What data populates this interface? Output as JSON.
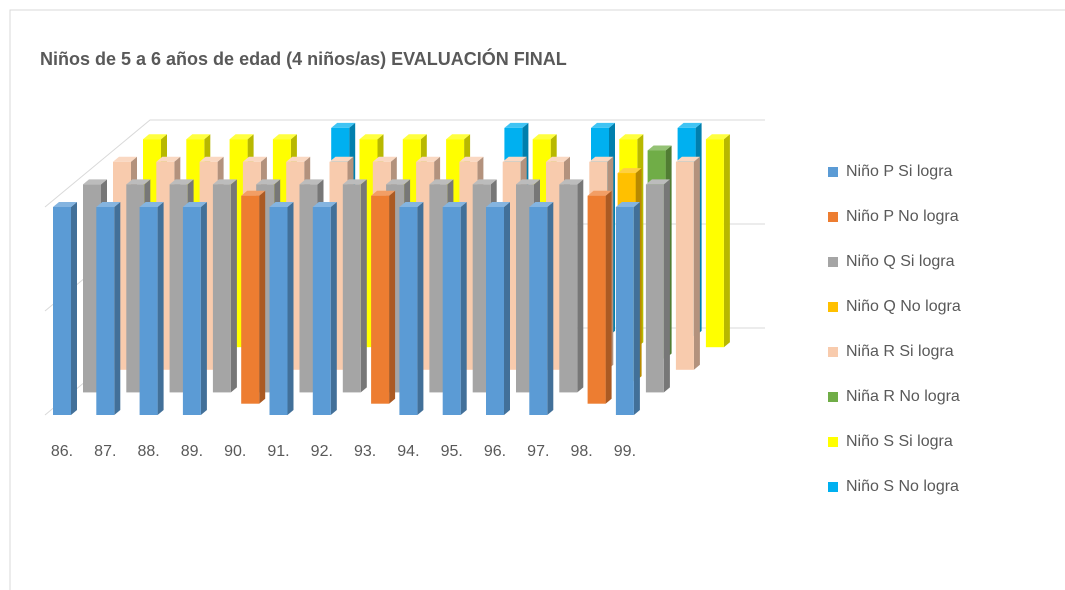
{
  "chart_data": {
    "type": "bar3d",
    "title": "Niños de 5 a 6 años de edad (4 niños/as) EVALUACIÓN FINAL",
    "categories": [
      "86.",
      "87.",
      "88.",
      "89.",
      "90.",
      "91.",
      "92.",
      "93.",
      "94.",
      "95.",
      "96.",
      "97.",
      "98.",
      "99."
    ],
    "series": [
      {
        "name": "Niño P Si logra",
        "color": "#5b9bd5",
        "values": [
          1,
          1,
          1,
          1,
          null,
          1,
          1,
          null,
          1,
          1,
          1,
          1,
          null,
          1
        ]
      },
      {
        "name": "Niño P No logra",
        "color": "#ed7d31",
        "values": [
          null,
          null,
          null,
          null,
          1,
          null,
          null,
          1,
          null,
          null,
          null,
          null,
          1,
          null
        ]
      },
      {
        "name": "Niño Q Si logra",
        "color": "#a5a5a5",
        "values": [
          1,
          1,
          1,
          1,
          1,
          1,
          1,
          1,
          1,
          1,
          1,
          1,
          null,
          1
        ]
      },
      {
        "name": "Niño Q No logra",
        "color": "#ffc000",
        "values": [
          null,
          null,
          null,
          null,
          null,
          null,
          null,
          null,
          null,
          null,
          null,
          null,
          1,
          null
        ]
      },
      {
        "name": "Niña R Si logra",
        "color": "#f8cbad",
        "values": [
          1,
          1,
          1,
          1,
          1,
          1,
          1,
          1,
          1,
          1,
          1,
          1,
          null,
          1
        ]
      },
      {
        "name": "Niña R No logra",
        "color": "#70ad47",
        "values": [
          null,
          null,
          null,
          null,
          null,
          null,
          null,
          null,
          null,
          null,
          null,
          null,
          1,
          null
        ]
      },
      {
        "name": "Niño S Si logra",
        "color": "#ffff00",
        "values": [
          1,
          1,
          1,
          1,
          null,
          1,
          1,
          1,
          null,
          1,
          null,
          1,
          null,
          1
        ]
      },
      {
        "name": "Niño S No logra",
        "color": "#00b0f0",
        "values": [
          null,
          null,
          null,
          null,
          1,
          null,
          null,
          null,
          1,
          null,
          1,
          null,
          1,
          null
        ]
      }
    ],
    "ylim": [
      0,
      1
    ],
    "yticks": [
      0,
      0.5,
      1
    ],
    "grid": true,
    "legend": "right"
  }
}
